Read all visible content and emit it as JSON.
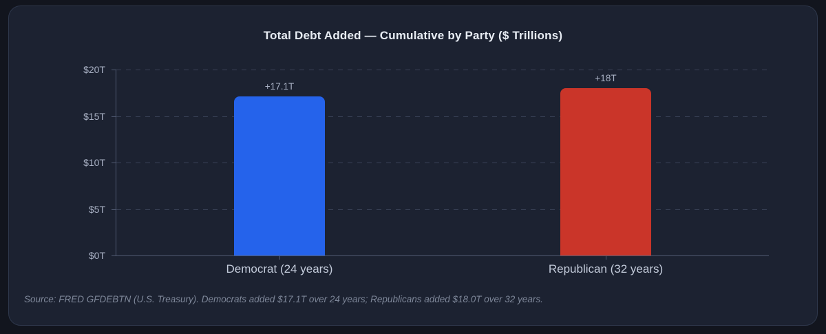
{
  "chart_data": {
    "type": "bar",
    "title": "Total Debt Added — Cumulative by Party ($ Trillions)",
    "categories": [
      "Democrat (24 years)",
      "Republican (32 years)"
    ],
    "values": [
      17.1,
      18.0
    ],
    "bar_labels": [
      "+17.1T",
      "+18T"
    ],
    "bar_colors": [
      "#2563eb",
      "#ca3529"
    ],
    "ylim": [
      0,
      20
    ],
    "ytick_values": [
      20,
      15,
      10,
      5,
      0
    ],
    "yticks": [
      "$20T",
      "$15T",
      "$10T",
      "$5T",
      "$0T"
    ],
    "grid": "horizontal dashed gridlines at each y tick",
    "legend": "none",
    "xlabel": "",
    "ylabel": "",
    "source_note": "Source: FRED GFDEBTN (U.S. Treasury). Democrats added $17.1T over 24 years; Republicans added $18.0T over 32 years."
  },
  "theme": {
    "page_background": "#12151e",
    "card_background": "#1c2231",
    "card_border": "#2e374b",
    "axis_color": "#515b72",
    "gridline_color": "#3a4257",
    "title_color": "#e7ecf3",
    "tick_label_color": "#a9b1c4",
    "category_label_color": "#c3cbda",
    "source_color": "#7e8799",
    "democrat_color": "#2563eb",
    "republican_color": "#ca3529"
  }
}
